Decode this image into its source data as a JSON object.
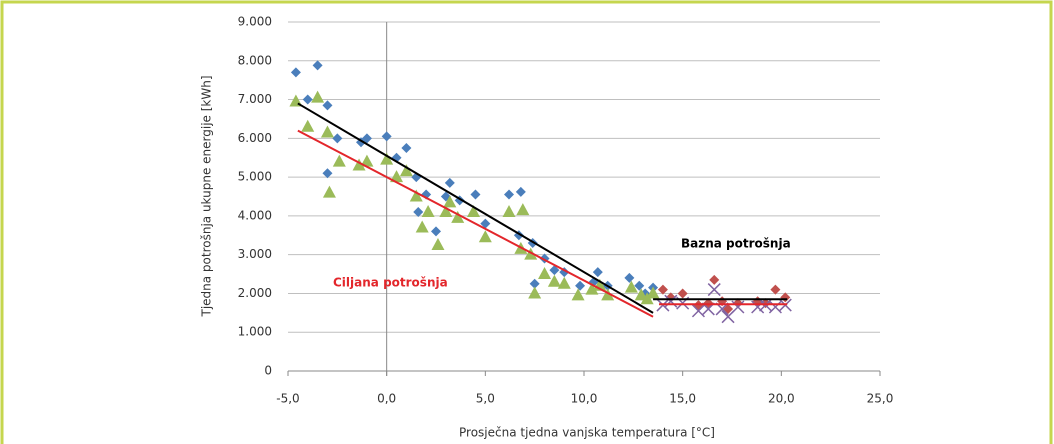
{
  "chart_data": {
    "type": "scatter",
    "xlabel": "Prosječna tjedna vanjska temperatura [°C]",
    "ylabel": "Tjedna potrošnja ukupne energije [kWh]",
    "xlim": [
      -5,
      25
    ],
    "xticks": [
      {
        "value": -5,
        "label": "-5,0"
      },
      {
        "value": 0,
        "label": "0,0"
      },
      {
        "value": 5,
        "label": "5,0"
      },
      {
        "value": 10,
        "label": "10,0"
      },
      {
        "value": 15,
        "label": "15,0"
      },
      {
        "value": 20,
        "label": "20,0"
      },
      {
        "value": 25,
        "label": "25,0"
      }
    ],
    "ylim": [
      0,
      9000
    ],
    "yticks": [
      0,
      {
        "value": 1000,
        "label": "1.000"
      },
      {
        "value": 2000,
        "label": "2.000"
      },
      {
        "value": 3000,
        "label": "3.000"
      },
      {
        "value": 4000,
        "label": "4.000"
      },
      {
        "value": 5000,
        "label": "5.000"
      },
      {
        "value": 6000,
        "label": "6.000"
      },
      {
        "value": 7000,
        "label": "7.000"
      },
      {
        "value": 8000,
        "label": "8.000"
      },
      {
        "value": 9000,
        "label": "9.000"
      }
    ],
    "grid": true,
    "annotations": [
      {
        "text": "Bazna potrošnja",
        "color": "#000000"
      },
      {
        "text": "Ciljana potrošnja",
        "color": "#e3262b"
      }
    ],
    "series": [
      {
        "color": "#4a7ebb",
        "marker": "diamond",
        "x": [
          -4.6,
          -4.0,
          -3.5,
          -3.0,
          -3.0,
          -2.5,
          -1.3,
          -1.0,
          0,
          0.5,
          1.0,
          1.5,
          1.6,
          2.0,
          2.5,
          3.0,
          3.2,
          3.7,
          4.5,
          5.0,
          6.2,
          6.8,
          6.7,
          7.4,
          7.5,
          8.0,
          8.5,
          9.0,
          9.8,
          10.5,
          10.7,
          11.2,
          12.3,
          12.8,
          13.1,
          13.5
        ],
        "values": [
          7700,
          7000,
          7880,
          6850,
          5100,
          6000,
          5900,
          6000,
          6050,
          5500,
          5750,
          5000,
          4100,
          4550,
          3600,
          4500,
          4850,
          4400,
          4550,
          3800,
          4550,
          4620,
          3500,
          3300,
          2250,
          2900,
          2600,
          2550,
          2200,
          2300,
          2550,
          2200,
          2400,
          2200,
          2000,
          2150
        ]
      },
      {
        "color": "#9bbb59",
        "marker": "triangle",
        "x": [
          -4.6,
          -4.0,
          -3.5,
          -3.0,
          -2.9,
          -2.4,
          -1.4,
          -1.0,
          0,
          0.5,
          1.0,
          1.5,
          1.8,
          2.1,
          2.6,
          3.0,
          3.2,
          3.6,
          4.4,
          5.0,
          6.2,
          6.9,
          6.8,
          7.3,
          7.5,
          8.0,
          8.5,
          9.0,
          9.7,
          10.4,
          10.8,
          11.2,
          12.4,
          12.9,
          13.2,
          13.5
        ],
        "values": [
          6950,
          6300,
          7050,
          6150,
          4600,
          5400,
          5300,
          5400,
          5450,
          5000,
          5150,
          4500,
          3700,
          4100,
          3250,
          4100,
          4350,
          3950,
          4100,
          3450,
          4100,
          4150,
          3150,
          3000,
          2000,
          2500,
          2300,
          2250,
          1950,
          2100,
          2200,
          1950,
          2150,
          1950,
          1850,
          2000
        ]
      },
      {
        "color": "#c0504d",
        "marker": "diamond",
        "x": [
          14.0,
          14.4,
          15.0,
          15.8,
          16.3,
          16.6,
          17.0,
          17.3,
          17.8,
          18.8,
          19.2,
          19.7,
          20.2
        ],
        "values": [
          2100,
          1900,
          2000,
          1700,
          1750,
          2350,
          1800,
          1600,
          1750,
          1800,
          1750,
          2100,
          1900
        ]
      },
      {
        "color": "#8064a2",
        "marker": "x",
        "x": [
          14.0,
          14.4,
          15.0,
          15.8,
          16.3,
          16.6,
          17.0,
          17.3,
          17.8,
          18.8,
          19.2,
          19.7,
          20.2
        ],
        "values": [
          1700,
          1800,
          1750,
          1550,
          1600,
          2100,
          1600,
          1400,
          1650,
          1650,
          1700,
          1650,
          1700
        ]
      },
      {
        "color": "#000000",
        "marker": "line",
        "x": [
          -4.5,
          13.5
        ],
        "values": [
          6900,
          1500
        ]
      },
      {
        "color": "#000000",
        "marker": "line",
        "x": [
          13.5,
          20.3
        ],
        "values": [
          1850,
          1850
        ]
      },
      {
        "color": "#e3262b",
        "marker": "line",
        "x": [
          -4.5,
          13.5
        ],
        "values": [
          6200,
          1400
        ]
      },
      {
        "color": "#e3262b",
        "marker": "line",
        "x": [
          13.8,
          20.3
        ],
        "values": [
          1720,
          1720
        ]
      }
    ]
  }
}
